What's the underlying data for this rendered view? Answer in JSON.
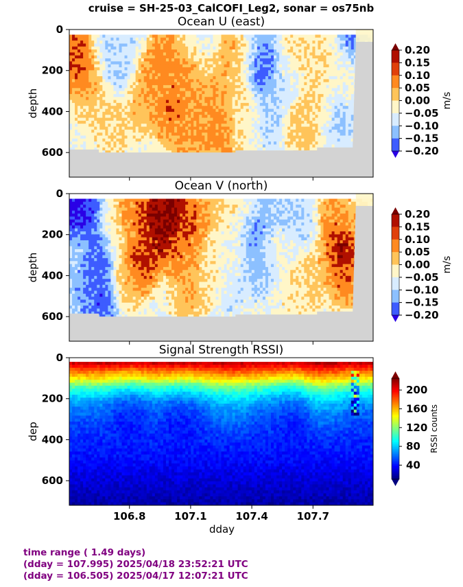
{
  "figure": {
    "suptitle": "cruise = SH-25-03_CalCOFI_Leg2,  sonar = os75nb",
    "footer": [
      "time range ( 1.49 days)",
      "(dday = 107.995) 2025/04/18 23:52:21 UTC",
      "(dday = 106.505) 2025/04/17 12:07:21 UTC"
    ]
  },
  "colors": {
    "no_data": "#d3d3d3",
    "footer_text": "#800080",
    "diverging_cmap": [
      "#2a00e6",
      "#3d5cff",
      "#8cc0ff",
      "#d8ecff",
      "#fff6c8",
      "#ffc45a",
      "#ff8a20",
      "#e0400a",
      "#b01000",
      "#7a0000"
    ],
    "jet_cmap": [
      "#00007f",
      "#0000ff",
      "#007fff",
      "#00ffff",
      "#7fff7f",
      "#ffff00",
      "#ff7f00",
      "#ff0000",
      "#7f0000"
    ]
  },
  "chart_data": [
    {
      "type": "heatmap",
      "title": "Ocean U (east)",
      "xlabel": "",
      "ylabel": "depth",
      "xlim": [
        106.505,
        107.995
      ],
      "ylim": [
        720,
        0
      ],
      "yticks": [
        0,
        200,
        400,
        600
      ],
      "xticks": [
        106.8,
        107.1,
        107.4,
        107.7
      ],
      "colorbar": {
        "label": "m/s",
        "ticks": [
          "0.20",
          "0.15",
          "0.10",
          "0.05",
          "0.00",
          "−0.05",
          "−0.10",
          "−0.15",
          "−0.20"
        ],
        "range": [
          -0.2,
          0.2
        ],
        "extend": "both"
      },
      "data_top_depth": 25,
      "bottom_profile": {
        "x": [
          106.505,
          106.65,
          106.65,
          107.32,
          107.32,
          107.72,
          107.72,
          107.895,
          107.895,
          107.91,
          107.995
        ],
        "y": [
          585,
          585,
          600,
          600,
          590,
          590,
          575,
          575,
          560,
          60,
          60
        ]
      },
      "features": [
        {
          "x": 106.55,
          "depth": 100,
          "value": 0.18
        },
        {
          "x": 106.58,
          "depth": 200,
          "value": 0.15
        },
        {
          "x": 106.62,
          "depth": 330,
          "value": 0.08
        },
        {
          "x": 106.68,
          "depth": 80,
          "value": -0.05
        },
        {
          "x": 106.75,
          "depth": 200,
          "value": -0.06
        },
        {
          "x": 106.72,
          "depth": 450,
          "value": 0.06
        },
        {
          "x": 106.82,
          "depth": 60,
          "value": -0.04
        },
        {
          "x": 106.85,
          "depth": 360,
          "value": 0.09
        },
        {
          "x": 106.9,
          "depth": 220,
          "value": 0.13
        },
        {
          "x": 106.95,
          "depth": 130,
          "value": 0.14
        },
        {
          "x": 107.0,
          "depth": 400,
          "value": 0.15
        },
        {
          "x": 107.05,
          "depth": 260,
          "value": 0.14
        },
        {
          "x": 107.1,
          "depth": 500,
          "value": 0.12
        },
        {
          "x": 107.13,
          "depth": 160,
          "value": 0.09
        },
        {
          "x": 107.18,
          "depth": 60,
          "value": -0.05
        },
        {
          "x": 107.2,
          "depth": 360,
          "value": 0.13
        },
        {
          "x": 107.23,
          "depth": 520,
          "value": 0.14
        },
        {
          "x": 107.27,
          "depth": 100,
          "value": 0.12
        },
        {
          "x": 107.28,
          "depth": 300,
          "value": 0.08
        },
        {
          "x": 107.35,
          "depth": 120,
          "value": 0.06
        },
        {
          "x": 107.37,
          "depth": 420,
          "value": 0.04
        },
        {
          "x": 107.45,
          "depth": 170,
          "value": -0.17
        },
        {
          "x": 107.45,
          "depth": 80,
          "value": -0.08
        },
        {
          "x": 107.48,
          "depth": 420,
          "value": -0.06
        },
        {
          "x": 107.55,
          "depth": 250,
          "value": -0.04
        },
        {
          "x": 107.6,
          "depth": 110,
          "value": 0.06
        },
        {
          "x": 107.64,
          "depth": 480,
          "value": 0.08
        },
        {
          "x": 107.72,
          "depth": 360,
          "value": 0.07
        },
        {
          "x": 107.78,
          "depth": 120,
          "value": 0.05
        },
        {
          "x": 107.82,
          "depth": 400,
          "value": -0.07
        },
        {
          "x": 107.88,
          "depth": 50,
          "value": -0.12
        },
        {
          "x": 107.86,
          "depth": 250,
          "value": 0.03
        }
      ]
    },
    {
      "type": "heatmap",
      "title": "Ocean V (north)",
      "xlabel": "",
      "ylabel": "depth",
      "xlim": [
        106.505,
        107.995
      ],
      "ylim": [
        720,
        0
      ],
      "yticks": [
        0,
        200,
        400,
        600
      ],
      "xticks": [
        106.8,
        107.1,
        107.4,
        107.7
      ],
      "colorbar": {
        "label": "m/s",
        "ticks": [
          "0.20",
          "0.15",
          "0.10",
          "0.05",
          "0.00",
          "−0.05",
          "−0.10",
          "−0.15",
          "−0.20"
        ],
        "range": [
          -0.2,
          0.2
        ],
        "extend": "both"
      },
      "data_top_depth": 25,
      "bottom_profile": {
        "x": [
          106.505,
          106.65,
          106.65,
          107.32,
          107.32,
          107.72,
          107.72,
          107.895,
          107.895,
          107.91,
          107.995
        ],
        "y": [
          585,
          585,
          600,
          600,
          590,
          590,
          575,
          575,
          560,
          60,
          60
        ]
      },
      "features": [
        {
          "x": 106.54,
          "depth": 60,
          "value": -0.2
        },
        {
          "x": 106.58,
          "depth": 110,
          "value": -0.15
        },
        {
          "x": 106.58,
          "depth": 300,
          "value": -0.06
        },
        {
          "x": 106.6,
          "depth": 450,
          "value": -0.1
        },
        {
          "x": 106.65,
          "depth": 300,
          "value": -0.18
        },
        {
          "x": 106.66,
          "depth": 500,
          "value": -0.16
        },
        {
          "x": 106.72,
          "depth": 200,
          "value": 0.04
        },
        {
          "x": 106.78,
          "depth": 420,
          "value": 0.08
        },
        {
          "x": 106.82,
          "depth": 130,
          "value": 0.14
        },
        {
          "x": 106.85,
          "depth": 330,
          "value": 0.19
        },
        {
          "x": 106.92,
          "depth": 100,
          "value": 0.2
        },
        {
          "x": 106.97,
          "depth": 200,
          "value": 0.21
        },
        {
          "x": 107.0,
          "depth": 60,
          "value": 0.22
        },
        {
          "x": 107.08,
          "depth": 300,
          "value": 0.14
        },
        {
          "x": 107.12,
          "depth": 120,
          "value": 0.16
        },
        {
          "x": 107.1,
          "depth": 480,
          "value": 0.1
        },
        {
          "x": 107.2,
          "depth": 60,
          "value": 0.08
        },
        {
          "x": 107.18,
          "depth": 400,
          "value": 0.05
        },
        {
          "x": 107.26,
          "depth": 220,
          "value": 0.02
        },
        {
          "x": 107.3,
          "depth": 500,
          "value": -0.03
        },
        {
          "x": 107.36,
          "depth": 70,
          "value": 0.05
        },
        {
          "x": 107.42,
          "depth": 150,
          "value": -0.14
        },
        {
          "x": 107.44,
          "depth": 350,
          "value": -0.08
        },
        {
          "x": 107.52,
          "depth": 80,
          "value": -0.06
        },
        {
          "x": 107.52,
          "depth": 250,
          "value": 0.01
        },
        {
          "x": 107.6,
          "depth": 480,
          "value": 0.04
        },
        {
          "x": 107.65,
          "depth": 150,
          "value": -0.05
        },
        {
          "x": 107.7,
          "depth": 400,
          "value": 0.08
        },
        {
          "x": 107.8,
          "depth": 130,
          "value": 0.12
        },
        {
          "x": 107.84,
          "depth": 250,
          "value": 0.22
        },
        {
          "x": 107.86,
          "depth": 400,
          "value": 0.15
        },
        {
          "x": 107.88,
          "depth": 80,
          "value": 0.08
        }
      ]
    },
    {
      "type": "heatmap",
      "title": "Signal Strength RSSI)",
      "xlabel": "dday",
      "ylabel": "dep",
      "xlim": [
        106.505,
        107.995
      ],
      "ylim": [
        720,
        0
      ],
      "yticks": [
        0,
        200,
        400,
        600
      ],
      "xticks": [
        106.8,
        107.1,
        107.4,
        107.7
      ],
      "xticklabels": [
        "106.8",
        "107.1",
        "107.4",
        "107.7"
      ],
      "colorbar": {
        "label": "RSSI counts",
        "ticks": [
          "200",
          "160",
          "120",
          "80",
          "40"
        ],
        "range": [
          10,
          225
        ],
        "extend": "both"
      },
      "data_top_depth": 20,
      "profile": {
        "depth": [
          20,
          60,
          100,
          140,
          180,
          220,
          260,
          320,
          400,
          480,
          560,
          640,
          720
        ],
        "rssi": [
          215,
          180,
          150,
          110,
          85,
          70,
          60,
          52,
          45,
          40,
          32,
          25,
          18
        ]
      },
      "features": [
        {
          "x": 106.8,
          "depth": 210,
          "value": -12
        },
        {
          "x": 107.05,
          "depth": 240,
          "value": -10
        },
        {
          "x": 107.3,
          "depth": 200,
          "value": 8
        },
        {
          "x": 107.6,
          "depth": 230,
          "value": -8
        },
        {
          "x": 107.75,
          "depth": 180,
          "value": 10
        }
      ]
    }
  ]
}
